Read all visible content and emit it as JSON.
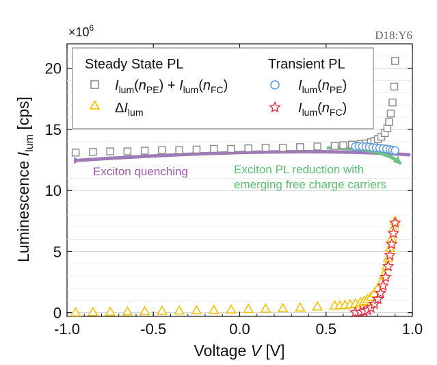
{
  "chart_data": {
    "type": "scatter",
    "sample_label": "D18:Y6",
    "multiplier": "×10",
    "multiplier_exp": "6",
    "xlabel": {
      "main": "Voltage ",
      "var": "V",
      "unit": " [V]"
    },
    "ylabel": {
      "main": "Luminescence ",
      "var": "I",
      "sub": "lum",
      "unit": " [cps]"
    },
    "xlim": [
      -1.0,
      1.0
    ],
    "ylim": [
      -0.3,
      22.0
    ],
    "x_ticks": [
      -1.0,
      -0.5,
      0.0,
      0.5,
      1.0
    ],
    "x_tick_labels": [
      "-1.0",
      "-0.5",
      "0.0",
      "0.5",
      "1.0"
    ],
    "y_ticks": [
      0,
      5,
      10,
      15,
      20
    ],
    "y_tick_labels": [
      "0",
      "5",
      "10",
      "15",
      "20"
    ],
    "grid": true,
    "legend": {
      "left_title": "Steady State PL",
      "right_title": "Transient PL",
      "placement": "top"
    },
    "series": [
      {
        "name": "Ilum(nPE) + Ilum(nFC)",
        "group": "Steady State PL",
        "marker": "square",
        "color": "#8c8c8c",
        "points": [
          [
            -0.95,
            13.1
          ],
          [
            -0.85,
            13.15
          ],
          [
            -0.75,
            13.2
          ],
          [
            -0.65,
            13.2
          ],
          [
            -0.55,
            13.25
          ],
          [
            -0.45,
            13.3
          ],
          [
            -0.35,
            13.3
          ],
          [
            -0.25,
            13.35
          ],
          [
            -0.15,
            13.4
          ],
          [
            -0.05,
            13.4
          ],
          [
            0.05,
            13.45
          ],
          [
            0.15,
            13.5
          ],
          [
            0.25,
            13.5
          ],
          [
            0.35,
            13.55
          ],
          [
            0.45,
            13.6
          ],
          [
            0.55,
            13.65
          ],
          [
            0.6,
            13.7
          ],
          [
            0.65,
            13.75
          ],
          [
            0.7,
            13.8
          ],
          [
            0.73,
            13.85
          ],
          [
            0.76,
            13.95
          ],
          [
            0.78,
            14.05
          ],
          [
            0.8,
            14.2
          ],
          [
            0.82,
            14.4
          ],
          [
            0.84,
            14.7
          ],
          [
            0.855,
            15.1
          ],
          [
            0.865,
            15.6
          ],
          [
            0.875,
            16.3
          ],
          [
            0.885,
            17.2
          ],
          [
            0.895,
            18.5
          ],
          [
            0.9,
            20.6
          ]
        ]
      },
      {
        "name": "ΔIlum",
        "group": "Steady State PL",
        "marker": "triangle",
        "color": "#f2c200",
        "points": [
          [
            -0.95,
            0.02
          ],
          [
            -0.85,
            0.05
          ],
          [
            -0.75,
            0.07
          ],
          [
            -0.65,
            0.1
          ],
          [
            -0.55,
            0.12
          ],
          [
            -0.45,
            0.15
          ],
          [
            -0.35,
            0.17
          ],
          [
            -0.25,
            0.2
          ],
          [
            -0.15,
            0.23
          ],
          [
            -0.05,
            0.26
          ],
          [
            0.05,
            0.3
          ],
          [
            0.15,
            0.33
          ],
          [
            0.25,
            0.36
          ],
          [
            0.35,
            0.42
          ],
          [
            0.45,
            0.5
          ],
          [
            0.55,
            0.58
          ],
          [
            0.58,
            0.6
          ],
          [
            0.61,
            0.62
          ],
          [
            0.64,
            0.68
          ],
          [
            0.67,
            0.75
          ],
          [
            0.7,
            0.85
          ],
          [
            0.72,
            0.95
          ],
          [
            0.74,
            1.1
          ],
          [
            0.76,
            1.3
          ],
          [
            0.78,
            1.6
          ],
          [
            0.8,
            2.0
          ],
          [
            0.82,
            2.5
          ],
          [
            0.835,
            3.1
          ],
          [
            0.85,
            3.8
          ],
          [
            0.86,
            4.5
          ],
          [
            0.87,
            5.3
          ],
          [
            0.88,
            6.1
          ],
          [
            0.89,
            6.9
          ],
          [
            0.9,
            7.5
          ]
        ]
      },
      {
        "name": "Ilum(nPE)",
        "group": "Transient PL",
        "marker": "circle",
        "color": "#5b9bd5",
        "points": [
          [
            0.67,
            13.6
          ],
          [
            0.69,
            13.62
          ],
          [
            0.71,
            13.6
          ],
          [
            0.73,
            13.58
          ],
          [
            0.75,
            13.55
          ],
          [
            0.77,
            13.52
          ],
          [
            0.79,
            13.5
          ],
          [
            0.81,
            13.47
          ],
          [
            0.83,
            13.43
          ],
          [
            0.85,
            13.4
          ],
          [
            0.87,
            13.35
          ],
          [
            0.885,
            13.3
          ],
          [
            0.9,
            13.27
          ]
        ]
      },
      {
        "name": "Ilum(nFC)",
        "group": "Transient PL",
        "marker": "star",
        "color": "#e0303f",
        "points": [
          [
            0.67,
            0.02
          ],
          [
            0.7,
            0.05
          ],
          [
            0.72,
            0.1
          ],
          [
            0.74,
            0.2
          ],
          [
            0.76,
            0.4
          ],
          [
            0.78,
            0.7
          ],
          [
            0.8,
            1.1
          ],
          [
            0.815,
            1.6
          ],
          [
            0.83,
            2.2
          ],
          [
            0.845,
            2.9
          ],
          [
            0.86,
            3.8
          ],
          [
            0.87,
            4.7
          ],
          [
            0.88,
            5.6
          ],
          [
            0.89,
            6.5
          ],
          [
            0.9,
            7.35
          ]
        ]
      }
    ],
    "annotations": [
      {
        "text": "Exciton quenching",
        "color": "#9b5aa8"
      },
      {
        "text_line1": "Exciton PL reduction with",
        "text_line2": "emerging free charge carriers",
        "color": "#5fba74"
      }
    ]
  }
}
